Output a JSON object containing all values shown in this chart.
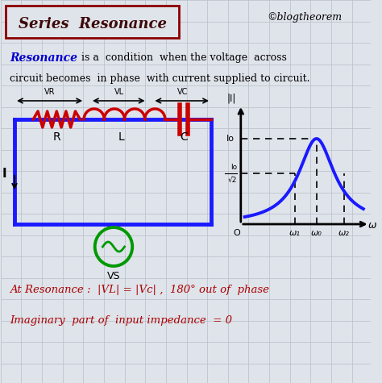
{
  "bg_color": "#dfe3ea",
  "grid_color": "#b8bec8",
  "title_box_text": "Series  Resonance",
  "copyright_text": "©blogtheorem",
  "line1_blue": "Resonance",
  "line1_rest": " is a  condition  when the voltage  across",
  "line2": "circuit becomes  in phase  with current supplied to circuit.",
  "circuit_color": "#1a1aff",
  "resistor_color": "#cc0000",
  "inductor_color": "#cc0000",
  "capacitor_color": "#cc0000",
  "source_color": "#009900",
  "resonance_curve_color": "#1a1aff",
  "bottom_line1": "At Resonance :  |VL| = |Vc| ,  180° out of  phase",
  "bottom_line2": "Imaginary  part of  input impedance  = 0",
  "bottom_color": "#aa0000"
}
